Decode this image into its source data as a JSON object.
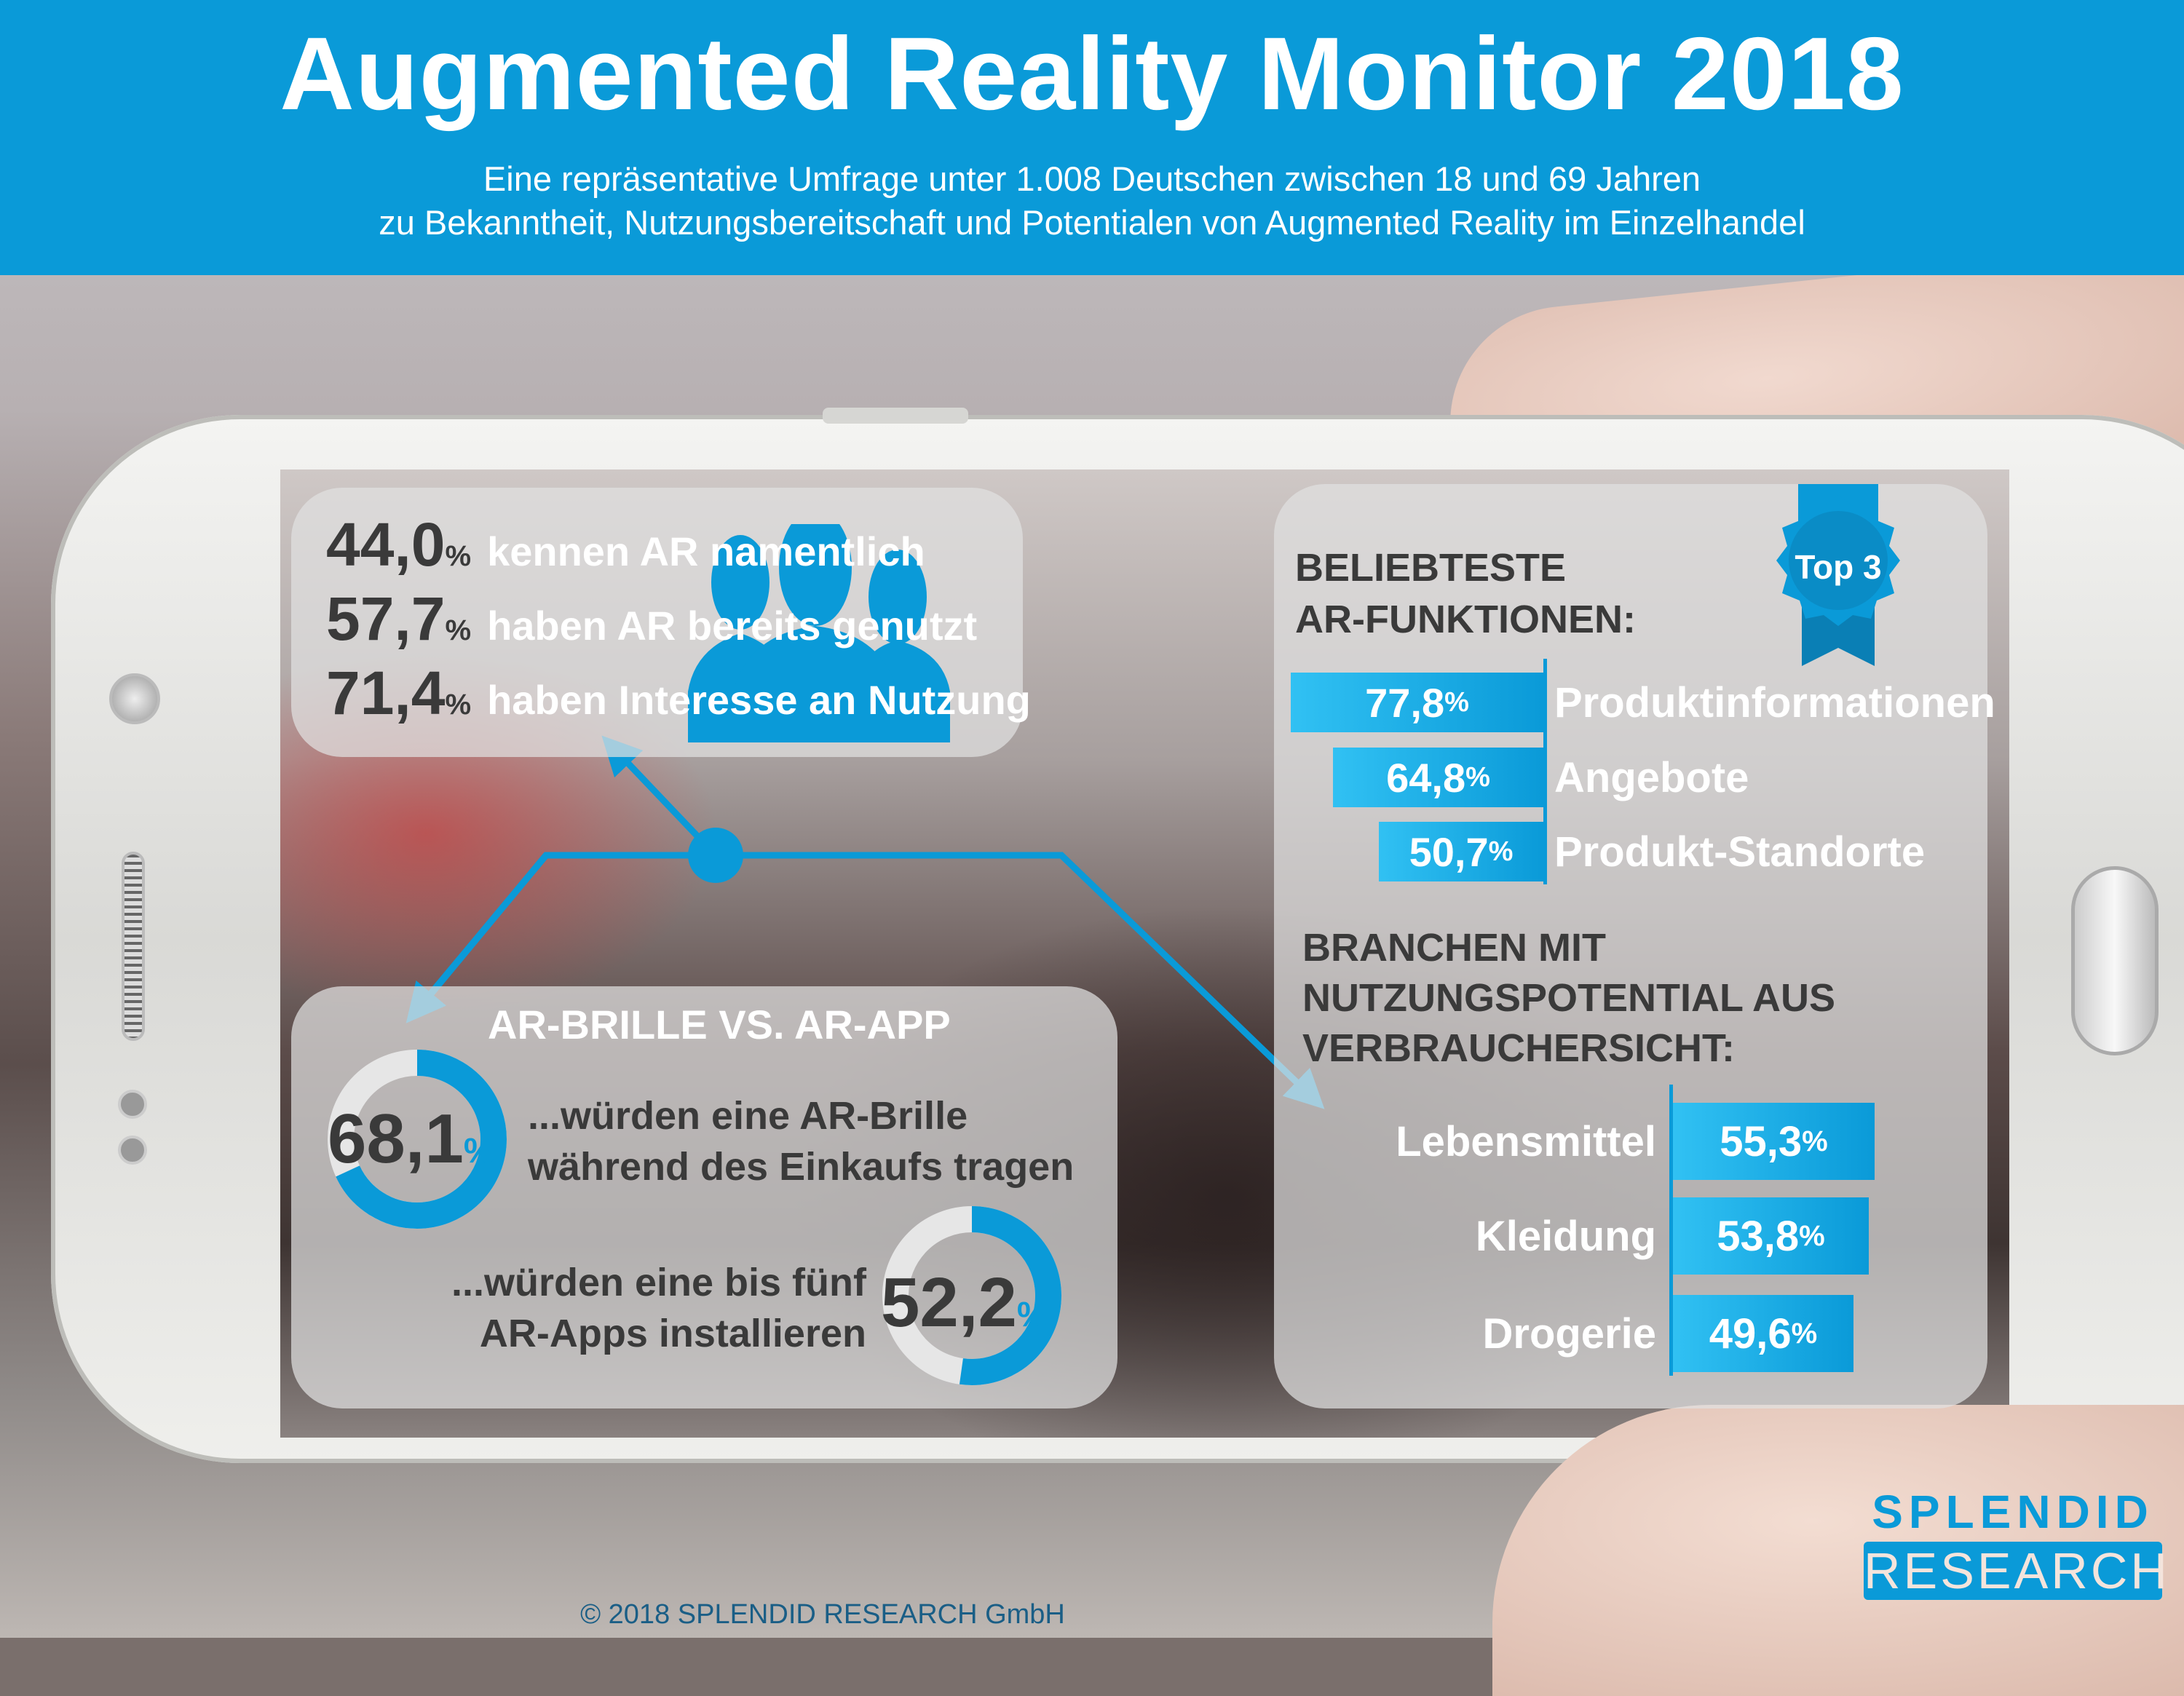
{
  "header": {
    "title": "Augmented Reality Monitor 2018",
    "subtitle_line1": "Eine repräsentative Umfrage unter 1.008 Deutschen zwischen 18 und 69 Jahren",
    "subtitle_line2": "zu Bekanntheit, Nutzungsbereitschaft und Potentialen von Augmented Reality im Einzelhandel"
  },
  "awareness": {
    "icon": "people-group-icon",
    "stats": [
      {
        "value": "44,0",
        "unit": "%",
        "label": "kennen AR namentlich"
      },
      {
        "value": "57,7",
        "unit": "%",
        "label": "haben AR bereits genutzt"
      },
      {
        "value": "71,4",
        "unit": "%",
        "label": "haben Interesse an Nutzung"
      }
    ]
  },
  "glasses_vs_app": {
    "title": "AR-BRILLE VS. AR-APP",
    "glasses": {
      "value": "68,1",
      "unit": "%",
      "fraction": 0.681,
      "line1": "...würden eine AR-Brille",
      "line2": "während des Einkaufs tragen"
    },
    "apps": {
      "value": "52,2",
      "unit": "%",
      "fraction": 0.522,
      "line1": "...würden eine bis fünf",
      "line2": "AR-Apps installieren"
    }
  },
  "functions": {
    "title_line1": "BELIEBTESTE",
    "title_line2": "AR-FUNKTIONEN:",
    "badge": "Top 3",
    "items": [
      {
        "value": 77.8,
        "display": "77,8",
        "unit": "%",
        "label": "Produktinformationen"
      },
      {
        "value": 64.8,
        "display": "64,8",
        "unit": "%",
        "label": "Angebote"
      },
      {
        "value": 50.7,
        "display": "50,7",
        "unit": "%",
        "label": "Produkt-Standorte"
      }
    ]
  },
  "branches": {
    "title_line1": "BRANCHEN MIT",
    "title_line2": "NUTZUNGSPOTENTIAL AUS",
    "title_line3": "VERBRAUCHERSICHT:",
    "items": [
      {
        "value": 55.3,
        "display": "55,3",
        "unit": "%",
        "label": "Lebensmittel"
      },
      {
        "value": 53.8,
        "display": "53,8",
        "unit": "%",
        "label": "Kleidung"
      },
      {
        "value": 49.6,
        "display": "49,6",
        "unit": "%",
        "label": "Drogerie"
      }
    ]
  },
  "logo": {
    "line1": "SPLENDID",
    "line2": "RESEARCH"
  },
  "copyright": "© 2018 SPLENDID RESEARCH GmbH",
  "colors": {
    "accent": "#0a9ad8",
    "dark_text": "#3a3a3a"
  }
}
